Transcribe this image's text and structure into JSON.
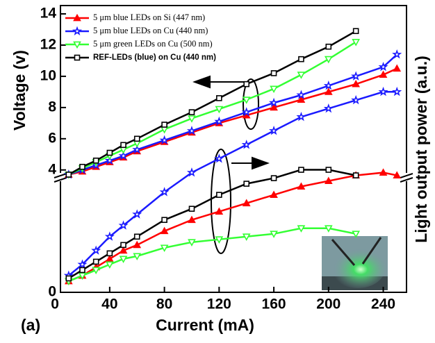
{
  "chart_data": {
    "type": "line",
    "xlabel": "Current (mA)",
    "ylabel": "Voltage (v)",
    "y2label": "Light output power (a.u.)",
    "panel_label": "(a)",
    "xlim": [
      4,
      257
    ],
    "xticks": [
      0,
      40,
      80,
      120,
      160,
      200,
      240
    ],
    "ylim": [
      3.5,
      14
    ],
    "yticks": [
      4,
      6,
      8,
      10,
      12,
      14
    ],
    "y2lim": [
      0,
      10
    ],
    "y2ticks": [
      0
    ],
    "legend": "upper left",
    "series": [
      {
        "name": "5 μm blue LEDs on Si (447 nm)",
        "color": "#ff0000",
        "marker": "triangle-up",
        "x": [
          10,
          20,
          30,
          40,
          50,
          60,
          80,
          100,
          120,
          140,
          160,
          180,
          200,
          220,
          240,
          250
        ],
        "values": [
          3.7,
          3.9,
          4.2,
          4.5,
          4.8,
          5.2,
          5.8,
          6.4,
          7.0,
          7.5,
          8.0,
          8.5,
          9.0,
          9.5,
          10.1,
          10.5
        ],
        "light_values": [
          0.4,
          0.6,
          0.9,
          1.2,
          1.5,
          1.7,
          2.2,
          2.6,
          2.9,
          3.2,
          3.5,
          3.8,
          4.0,
          4.2,
          4.3,
          4.2
        ]
      },
      {
        "name": "5 μm blue LEDs on Cu (440 nm)",
        "color": "#1a1aff",
        "marker": "star",
        "x": [
          10,
          20,
          30,
          40,
          50,
          60,
          80,
          100,
          120,
          140,
          160,
          180,
          200,
          220,
          240,
          250
        ],
        "values": [
          3.7,
          4.0,
          4.3,
          4.6,
          4.9,
          5.3,
          5.9,
          6.5,
          7.1,
          7.7,
          8.3,
          8.8,
          9.4,
          10.0,
          10.6,
          11.4
        ],
        "light_values": [
          0.6,
          1.0,
          1.5,
          2.0,
          2.4,
          2.8,
          3.6,
          4.3,
          4.8,
          5.3,
          5.8,
          6.3,
          6.6,
          6.9,
          7.2,
          7.2
        ]
      },
      {
        "name": "5 μm green LEDs on Cu (500 nm)",
        "color": "#33ff33",
        "marker": "triangle-down",
        "x": [
          10,
          20,
          30,
          40,
          50,
          60,
          80,
          100,
          120,
          140,
          160,
          180,
          200,
          220
        ],
        "values": [
          3.7,
          4.1,
          4.5,
          4.9,
          5.3,
          5.7,
          6.6,
          7.3,
          7.9,
          8.5,
          9.2,
          10.1,
          11.1,
          12.2
        ],
        "light_values": [
          0.4,
          0.6,
          0.8,
          1.0,
          1.2,
          1.3,
          1.6,
          1.8,
          1.9,
          2.0,
          2.1,
          2.3,
          2.3,
          2.1
        ]
      },
      {
        "name": "REF-LEDs (blue) on Cu (440 nm)",
        "color": "#000000",
        "marker": "square",
        "x": [
          10,
          20,
          30,
          40,
          50,
          60,
          80,
          100,
          120,
          140,
          160,
          180,
          200,
          220
        ],
        "values": [
          3.7,
          4.2,
          4.6,
          5.1,
          5.6,
          6.0,
          6.9,
          7.7,
          8.6,
          9.5,
          10.2,
          11.1,
          11.9,
          12.9
        ],
        "light_values": [
          0.5,
          0.8,
          1.1,
          1.4,
          1.7,
          2.0,
          2.6,
          3.0,
          3.5,
          3.9,
          4.1,
          4.4,
          4.4,
          4.2
        ]
      }
    ]
  }
}
